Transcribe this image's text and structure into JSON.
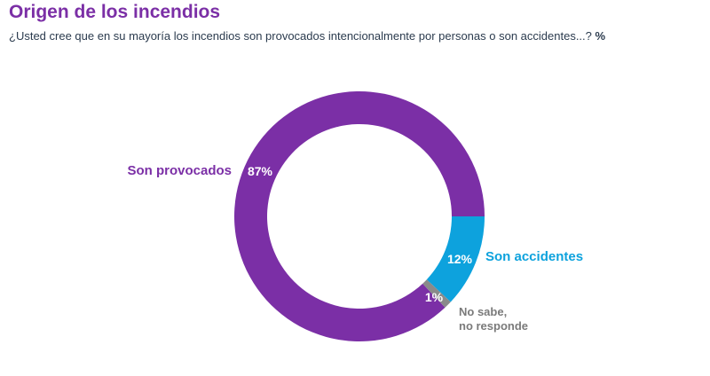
{
  "title": "Origen de los incendios",
  "subtitle": "¿Usted cree que en su mayoría los incendios son provocados intencionalmente por personas o son accidentes...?",
  "unit": "%",
  "chart_data": {
    "type": "pie",
    "variant": "donut",
    "title": "Origen de los incendios",
    "unit": "%",
    "slices": [
      {
        "name": "Son provocados",
        "value": 87,
        "value_label": "87%",
        "color": "#7b2fa6"
      },
      {
        "name": "Son accidentes",
        "value": 12,
        "value_label": "12%",
        "color": "#0da2dd"
      },
      {
        "name": "No sabe, no responde",
        "value": 1,
        "value_label": "1%",
        "color": "#8a8a8a"
      }
    ]
  }
}
